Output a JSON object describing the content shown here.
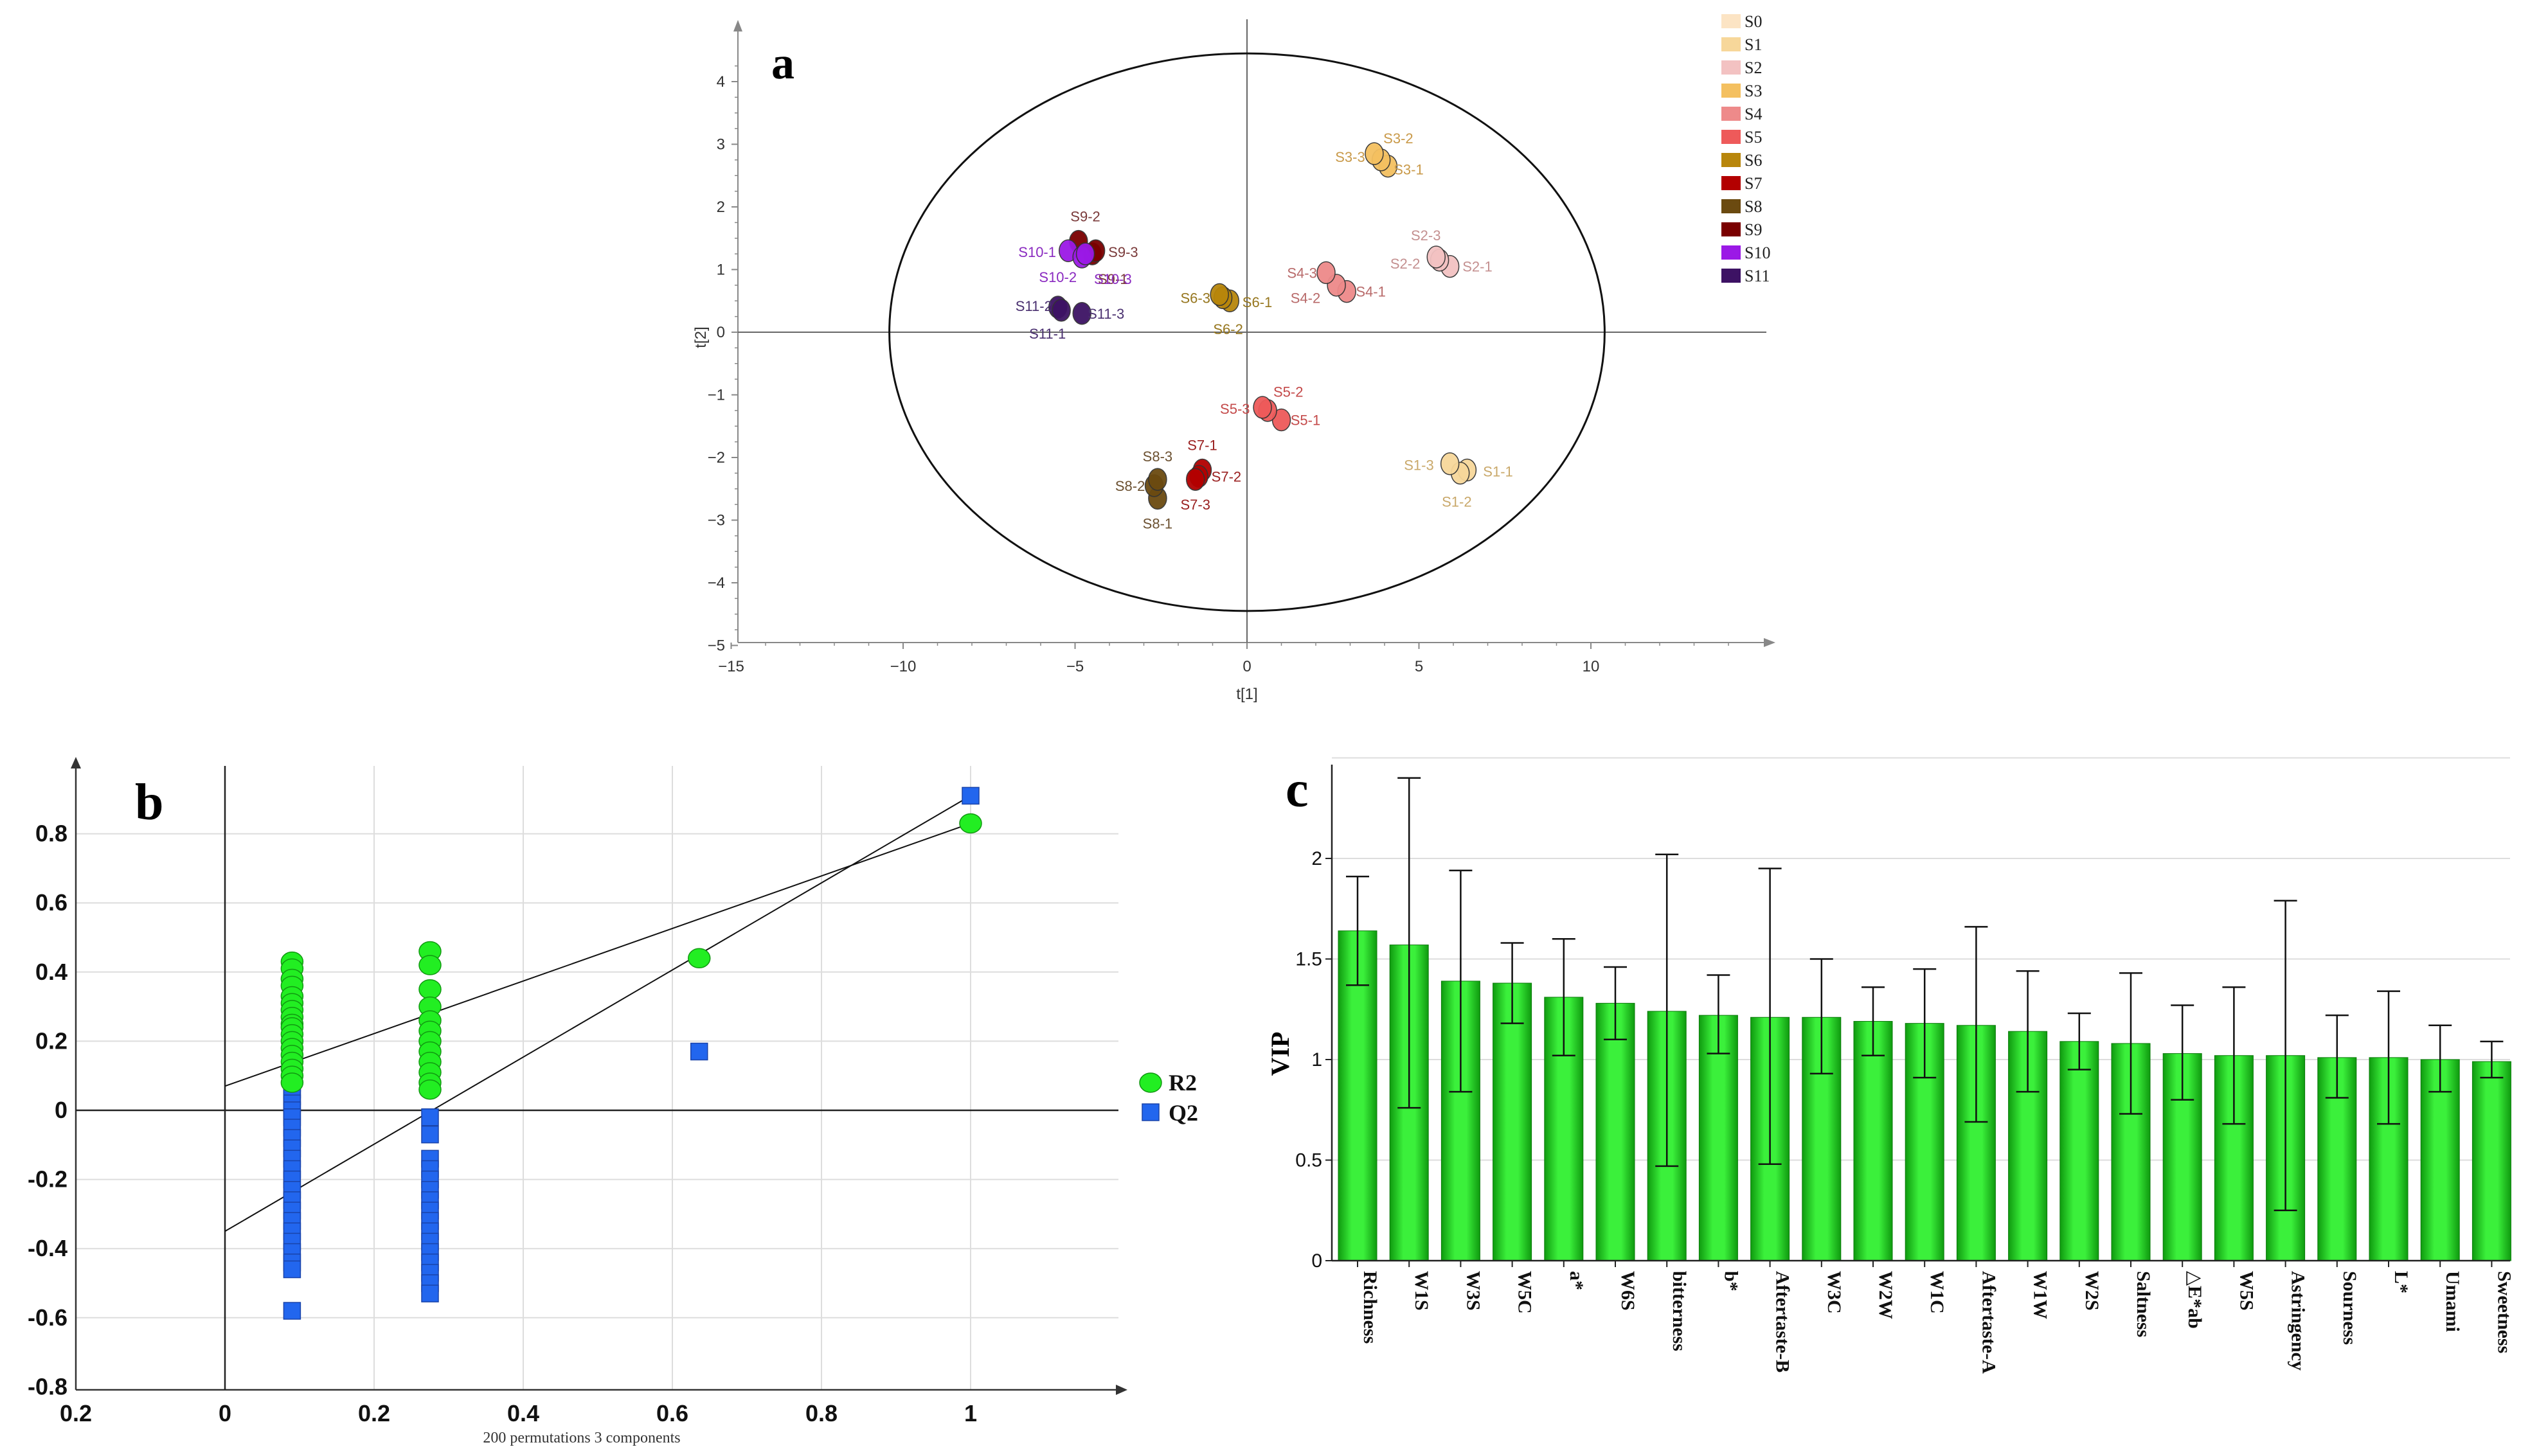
{
  "chart_data": [
    {
      "type": "scatter",
      "panel_label": "a",
      "xlabel": "t[1]",
      "ylabel": "t[2]",
      "xlim": [
        -15,
        15
      ],
      "ylim": [
        -5,
        4.5
      ],
      "x_ticks": [
        "−15",
        "−10",
        "−5",
        "0",
        "5",
        "10"
      ],
      "y_ticks": [
        "−5",
        "−4",
        "−3",
        "−2",
        "−1",
        "0",
        "1",
        "2",
        "3",
        "4"
      ],
      "ellipse": {
        "cx": 0,
        "cy": 0,
        "rx": 10.4,
        "ry": 4.45
      },
      "legend": [
        {
          "name": "S0",
          "color": "#FCE4C4"
        },
        {
          "name": "S1",
          "color": "#F7D79A"
        },
        {
          "name": "S2",
          "color": "#F3C2C2"
        },
        {
          "name": "S3",
          "color": "#F4C060"
        },
        {
          "name": "S4",
          "color": "#EE8A8A"
        },
        {
          "name": "S5",
          "color": "#EE5A5A"
        },
        {
          "name": "S6",
          "color": "#B8860B"
        },
        {
          "name": "S7",
          "color": "#B30000"
        },
        {
          "name": "S8",
          "color": "#6B4A10"
        },
        {
          "name": "S9",
          "color": "#7A0000"
        },
        {
          "name": "S10",
          "color": "#9B19E6"
        },
        {
          "name": "S11",
          "color": "#3D1264"
        }
      ],
      "groups": [
        {
          "name": "S1",
          "color": "#F7D79A",
          "label_color": "#C9A86A",
          "points": [
            {
              "label": "S1-1",
              "x": 6.4,
              "y": -2.2,
              "lx": 7.3,
              "ly": -2.22
            },
            {
              "label": "S1-2",
              "x": 6.2,
              "y": -2.25,
              "lx": 6.1,
              "ly": -2.7
            },
            {
              "label": "S1-3",
              "x": 5.9,
              "y": -2.1,
              "lx": 5.0,
              "ly": -2.12
            }
          ]
        },
        {
          "name": "S2",
          "color": "#F3C2C2",
          "label_color": "#C49090",
          "points": [
            {
              "label": "S2-1",
              "x": 5.9,
              "y": 1.05,
              "lx": 6.7,
              "ly": 1.05
            },
            {
              "label": "S2-2",
              "x": 5.6,
              "y": 1.15,
              "lx": 4.6,
              "ly": 1.1
            },
            {
              "label": "S2-3",
              "x": 5.5,
              "y": 1.2,
              "lx": 5.2,
              "ly": 1.55
            }
          ]
        },
        {
          "name": "S3",
          "color": "#F4C060",
          "label_color": "#C99A4A",
          "points": [
            {
              "label": "S3-1",
              "x": 4.1,
              "y": 2.65,
              "lx": 4.7,
              "ly": 2.6
            },
            {
              "label": "S3-2",
              "x": 3.9,
              "y": 2.75,
              "lx": 4.4,
              "ly": 3.1
            },
            {
              "label": "S3-3",
              "x": 3.7,
              "y": 2.85,
              "lx": 3.0,
              "ly": 2.8
            }
          ]
        },
        {
          "name": "S4",
          "color": "#EE8A8A",
          "label_color": "#B86A6A",
          "points": [
            {
              "label": "S4-1",
              "x": 2.9,
              "y": 0.65,
              "lx": 3.6,
              "ly": 0.65
            },
            {
              "label": "S4-2",
              "x": 2.6,
              "y": 0.75,
              "lx": 1.7,
              "ly": 0.55
            },
            {
              "label": "S4-3",
              "x": 2.3,
              "y": 0.95,
              "lx": 1.6,
              "ly": 0.95
            }
          ]
        },
        {
          "name": "S5",
          "color": "#EE5A5A",
          "label_color": "#C44A4A",
          "points": [
            {
              "label": "S5-1",
              "x": 1.0,
              "y": -1.4,
              "lx": 1.7,
              "ly": -1.4
            },
            {
              "label": "S5-2",
              "x": 0.6,
              "y": -1.25,
              "lx": 1.2,
              "ly": -0.95
            },
            {
              "label": "S5-3",
              "x": 0.45,
              "y": -1.2,
              "lx": -0.35,
              "ly": -1.22
            }
          ]
        },
        {
          "name": "S6",
          "color": "#B8860B",
          "label_color": "#96761E",
          "points": [
            {
              "label": "S6-1",
              "x": -0.5,
              "y": 0.5,
              "lx": 0.3,
              "ly": 0.48
            },
            {
              "label": "S6-2",
              "x": -0.7,
              "y": 0.55,
              "lx": -0.55,
              "ly": 0.05
            },
            {
              "label": "S6-3",
              "x": -0.8,
              "y": 0.6,
              "lx": -1.5,
              "ly": 0.55
            }
          ]
        },
        {
          "name": "S7",
          "color": "#B30000",
          "label_color": "#9A2020",
          "points": [
            {
              "label": "S7-1",
              "x": -1.3,
              "y": -2.2,
              "lx": -1.3,
              "ly": -1.8
            },
            {
              "label": "S7-2",
              "x": -1.4,
              "y": -2.3,
              "lx": -0.6,
              "ly": -2.3
            },
            {
              "label": "S7-3",
              "x": -1.5,
              "y": -2.35,
              "lx": -1.5,
              "ly": -2.75
            }
          ]
        },
        {
          "name": "S8",
          "color": "#6B4A10",
          "label_color": "#6B5030",
          "points": [
            {
              "label": "S8-1",
              "x": -2.6,
              "y": -2.65,
              "lx": -2.6,
              "ly": -3.05
            },
            {
              "label": "S8-2",
              "x": -2.7,
              "y": -2.45,
              "lx": -3.4,
              "ly": -2.45
            },
            {
              "label": "S8-3",
              "x": -2.6,
              "y": -2.35,
              "lx": -2.6,
              "ly": -1.98
            }
          ]
        },
        {
          "name": "S9",
          "color": "#7A0000",
          "label_color": "#7A3A3A",
          "points": [
            {
              "label": "S9-1",
              "x": -4.5,
              "y": 1.25,
              "lx": -3.9,
              "ly": 0.85
            },
            {
              "label": "S9-2",
              "x": -4.9,
              "y": 1.45,
              "lx": -4.7,
              "ly": 1.85
            },
            {
              "label": "S9-3",
              "x": -4.4,
              "y": 1.3,
              "lx": -3.6,
              "ly": 1.28
            }
          ]
        },
        {
          "name": "S10",
          "color": "#9B19E6",
          "label_color": "#8A2AC0",
          "points": [
            {
              "label": "S10-1",
              "x": -5.2,
              "y": 1.3,
              "lx": -6.1,
              "ly": 1.28
            },
            {
              "label": "S10-2",
              "x": -4.8,
              "y": 1.2,
              "lx": -5.5,
              "ly": 0.88
            },
            {
              "label": "S10-3",
              "x": -4.7,
              "y": 1.25,
              "lx": -3.9,
              "ly": 0.85
            }
          ]
        },
        {
          "name": "S11",
          "color": "#3D1264",
          "label_color": "#4A3070",
          "points": [
            {
              "label": "S11-1",
              "x": -5.5,
              "y": 0.4,
              "lx": -5.8,
              "ly": -0.02
            },
            {
              "label": "S11-2",
              "x": -5.4,
              "y": 0.35,
              "lx": -6.2,
              "ly": 0.42
            },
            {
              "label": "S11-3",
              "x": -4.8,
              "y": 0.3,
              "lx": -4.1,
              "ly": 0.3
            }
          ]
        }
      ]
    },
    {
      "type": "scatter",
      "panel_label": "b",
      "xlabel": "200 permutations 3 components",
      "xlim": [
        -0.2,
        1.2
      ],
      "ylim": [
        -0.8,
        0.95
      ],
      "x_ticks": [
        "0.2",
        "0",
        "0.2",
        "0.4",
        "0.6",
        "0.8",
        "1"
      ],
      "y_ticks": [
        "0.8",
        "0.6",
        "0.4",
        "0.2",
        "0",
        "-0.2",
        "-0.4",
        "-0.6",
        "-0.8"
      ],
      "series": [
        {
          "name": "R2",
          "color": "#22EE22",
          "marker": "circle",
          "x_groups": [
            0.09,
            0.275
          ],
          "values": {
            "0.09": [
              0.43,
              0.41,
              0.38,
              0.36,
              0.33,
              0.31,
              0.29,
              0.27,
              0.25,
              0.24,
              0.22,
              0.2,
              0.18,
              0.16,
              0.14,
              0.12,
              0.1,
              0.08
            ],
            "0.275": [
              0.46,
              0.42,
              0.35,
              0.3,
              0.26,
              0.23,
              0.2,
              0.17,
              0.14,
              0.11,
              0.08,
              0.06
            ]
          },
          "extra": [
            [
              0.636,
              0.44
            ],
            [
              1.0,
              0.83
            ]
          ],
          "regression_line": {
            "intercept": 0.07,
            "slope_end": 0.83
          }
        },
        {
          "name": "Q2",
          "color": "#2266EE",
          "marker": "square",
          "values": {
            "0.09": [
              0.14,
              0.12,
              0.1,
              0.08,
              0.06,
              0.04,
              0.02,
              0.0,
              -0.02,
              -0.05,
              -0.08,
              -0.11,
              -0.14,
              -0.17,
              -0.2,
              -0.23,
              -0.26,
              -0.29,
              -0.32,
              -0.35,
              -0.38,
              -0.41,
              -0.44,
              -0.46,
              -0.58
            ],
            "0.275": [
              -0.02,
              -0.07,
              -0.14,
              -0.17,
              -0.2,
              -0.23,
              -0.26,
              -0.29,
              -0.32,
              -0.35,
              -0.38,
              -0.41,
              -0.44,
              -0.47,
              -0.5,
              -0.53
            ]
          },
          "extra": [
            [
              0.636,
              0.17
            ],
            [
              1.0,
              0.91
            ]
          ],
          "regression_line": {
            "intercept": -0.35,
            "slope_end": 0.91
          }
        }
      ]
    },
    {
      "type": "bar",
      "panel_label": "c",
      "ylabel": "VIP",
      "ylim": [
        0,
        2.5
      ],
      "y_ticks": [
        "0",
        "0.5",
        "1",
        "1.5",
        "2"
      ],
      "categories": [
        "Richness",
        "W1S",
        "W3S",
        "W5C",
        "a*",
        "W6S",
        "bitterness",
        "b*",
        "Aftertaste-B",
        "W3C",
        "W2W",
        "W1C",
        "Aftertaste-A",
        "W1W",
        "W2S",
        "Saltness",
        "△E*ab",
        "W5S",
        "Astringency",
        "Sourness",
        "L*",
        "Umami",
        "Sweetness"
      ],
      "values": [
        1.64,
        1.57,
        1.39,
        1.38,
        1.31,
        1.28,
        1.24,
        1.22,
        1.21,
        1.21,
        1.19,
        1.18,
        1.17,
        1.14,
        1.09,
        1.08,
        1.03,
        1.02,
        1.02,
        1.01,
        1.01,
        1.0,
        0.99
      ],
      "error_low": [
        1.37,
        0.76,
        0.84,
        1.18,
        1.02,
        1.1,
        0.47,
        1.03,
        0.48,
        0.93,
        1.02,
        0.91,
        0.69,
        0.84,
        0.95,
        0.73,
        0.8,
        0.68,
        0.25,
        0.81,
        0.68,
        0.84,
        0.91
      ],
      "error_high": [
        1.91,
        2.4,
        1.94,
        1.58,
        1.6,
        1.46,
        2.02,
        1.42,
        1.95,
        1.5,
        1.36,
        1.45,
        1.66,
        1.44,
        1.23,
        1.43,
        1.27,
        1.36,
        1.79,
        1.22,
        1.34,
        1.17,
        1.09
      ],
      "bar_color": "#22DD22"
    }
  ]
}
